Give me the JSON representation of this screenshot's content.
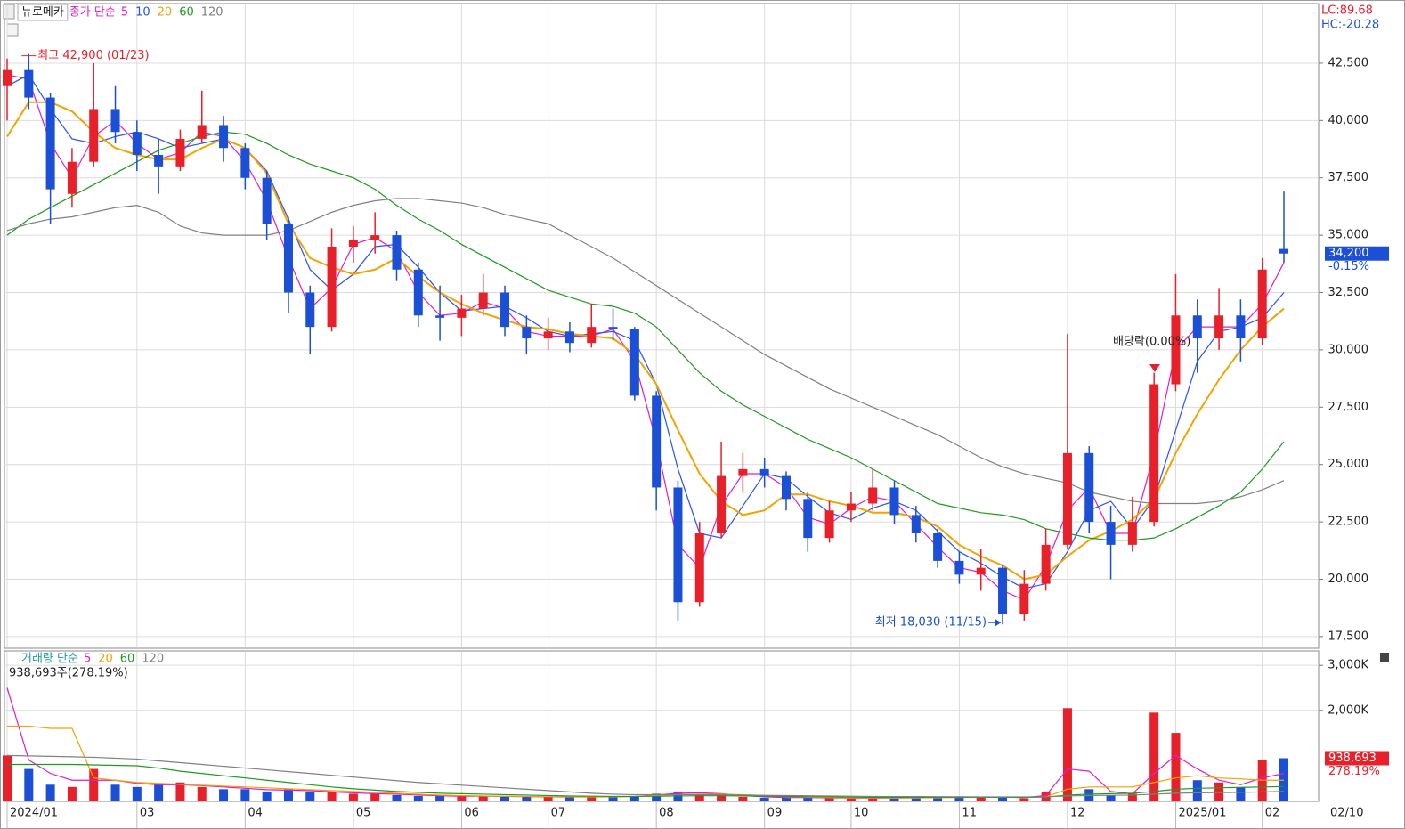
{
  "chart_data": [
    {
      "type": "candlestick",
      "title": "뉴로메카",
      "legend_prefix": "종가 단순",
      "open": [
        41500,
        42200,
        41000,
        36800,
        38200,
        40500,
        39500,
        38500,
        38000,
        39200,
        39800,
        38800,
        37500,
        35500,
        32500,
        31000,
        34500,
        34800,
        35000,
        33500,
        31500,
        31400,
        31800,
        32500,
        31000,
        30500,
        30800,
        30300,
        31000,
        30900,
        28000,
        24000,
        19000,
        22000,
        24500,
        24800,
        24500,
        23500,
        21800,
        23000,
        23300,
        24000,
        22800,
        22000,
        20800,
        20200,
        20500,
        18500,
        19800,
        21500,
        25500,
        22500,
        21500,
        22500,
        28500,
        31500,
        30500,
        31500,
        30500,
        34400
      ],
      "high": [
        42700,
        42900,
        41200,
        38800,
        42500,
        41500,
        40000,
        39200,
        39600,
        41300,
        40200,
        39000,
        37800,
        35800,
        32800,
        35300,
        35400,
        36000,
        35200,
        33800,
        32800,
        32400,
        33300,
        32800,
        31500,
        31400,
        31200,
        32000,
        31800,
        31000,
        28200,
        24300,
        22500,
        26000,
        25500,
        25300,
        24700,
        23800,
        23400,
        23800,
        24800,
        24300,
        23200,
        22200,
        21200,
        21300,
        20600,
        20400,
        22200,
        30700,
        25800,
        23200,
        23600,
        29000,
        33300,
        32200,
        32700,
        32200,
        34000,
        36900
      ],
      "low": [
        40000,
        40500,
        35500,
        36200,
        38000,
        39000,
        37800,
        36800,
        37800,
        39000,
        38200,
        37000,
        34800,
        31600,
        29800,
        30800,
        33800,
        34200,
        33000,
        31000,
        30400,
        30600,
        31500,
        30600,
        29800,
        30000,
        29900,
        30100,
        30400,
        27800,
        23000,
        18200,
        18800,
        21800,
        23800,
        24000,
        23000,
        21200,
        21600,
        22500,
        23000,
        22400,
        21600,
        20500,
        19800,
        19500,
        18030,
        18200,
        19500,
        21300,
        22000,
        20000,
        21200,
        22300,
        28200,
        29000,
        30000,
        29500,
        30200,
        33800
      ],
      "close": [
        42200,
        41000,
        37000,
        38200,
        40500,
        39500,
        38500,
        38000,
        39200,
        39800,
        38800,
        37500,
        35500,
        32500,
        31000,
        34500,
        34800,
        35000,
        33500,
        31500,
        31400,
        31800,
        32500,
        31000,
        30500,
        30800,
        30300,
        31000,
        30900,
        28000,
        24000,
        19000,
        22000,
        24500,
        24800,
        24500,
        23500,
        21800,
        23000,
        23300,
        24000,
        22800,
        22000,
        20800,
        20200,
        20500,
        18500,
        19800,
        21500,
        25500,
        22500,
        21500,
        22500,
        28500,
        31500,
        30500,
        31500,
        30500,
        33500,
        34200
      ],
      "series": [
        {
          "name": "5",
          "color": "#e01ccf",
          "values": [
            42000,
            41800,
            39000,
            37500,
            39300,
            40000,
            39000,
            38300,
            38600,
            39500,
            39300,
            38200,
            36500,
            34000,
            31800,
            32700,
            34600,
            34900,
            34300,
            32500,
            31500,
            31600,
            32100,
            31800,
            30800,
            30600,
            30600,
            30600,
            30900,
            29500,
            26000,
            21500,
            20500,
            23200,
            24600,
            24600,
            24000,
            22700,
            22400,
            23100,
            23600,
            23400,
            22400,
            21400,
            20500,
            20300,
            19500,
            19100,
            20600,
            23000,
            24000,
            22000,
            22000,
            25500,
            30000,
            31000,
            31000,
            31000,
            32000,
            33800
          ]
        },
        {
          "name": "10",
          "color": "#2a52f0",
          "values": [
            41500,
            42000,
            40500,
            39200,
            39000,
            39300,
            39500,
            39200,
            38800,
            39000,
            39200,
            38800,
            37800,
            35700,
            33500,
            32600,
            33300,
            34500,
            34600,
            33600,
            32500,
            31700,
            31800,
            31900,
            31400,
            30800,
            30600,
            30700,
            30800,
            30400,
            28500,
            24800,
            22000,
            21800,
            23200,
            24600,
            24400,
            23600,
            22900,
            22600,
            23100,
            23400,
            23000,
            22100,
            21200,
            20700,
            20100,
            19600,
            19800,
            21200,
            23000,
            23400,
            22200,
            23500,
            26500,
            29500,
            30800,
            31000,
            31400,
            32500
          ]
        },
        {
          "name": "20",
          "color": "#f0a400",
          "values": [
            39300,
            40800,
            40800,
            40400,
            39500,
            38800,
            38500,
            38300,
            38300,
            38800,
            39200,
            38800,
            37700,
            35500,
            34000,
            33600,
            33300,
            33500,
            34000,
            33200,
            32500,
            32000,
            31600,
            31300,
            31000,
            30900,
            30700,
            30600,
            30500,
            29800,
            28500,
            26500,
            24600,
            23400,
            22800,
            23000,
            23700,
            23700,
            23400,
            23200,
            22900,
            22900,
            22700,
            22300,
            21500,
            21000,
            20600,
            20000,
            20200,
            21000,
            21700,
            22100,
            22600,
            23500,
            25500,
            27200,
            28700,
            30000,
            31000,
            31800
          ]
        },
        {
          "name": "60",
          "color": "#1f9a1f",
          "values": [
            35000,
            35700,
            36200,
            36700,
            37200,
            37700,
            38200,
            38700,
            39000,
            39300,
            39500,
            39400,
            39000,
            38500,
            38100,
            37800,
            37500,
            37000,
            36300,
            35700,
            35200,
            34600,
            34100,
            33600,
            33100,
            32600,
            32300,
            32000,
            31900,
            31600,
            31000,
            30000,
            29000,
            28200,
            27600,
            27100,
            26600,
            26100,
            25700,
            25300,
            24800,
            24300,
            23800,
            23300,
            23100,
            22900,
            22800,
            22600,
            22200,
            22000,
            21800,
            21700,
            21700,
            21800,
            22200,
            22700,
            23200,
            23800,
            24800,
            26000
          ]
        },
        {
          "name": "120",
          "color": "#808080",
          "values": [
            35200,
            35500,
            35700,
            35800,
            36000,
            36200,
            36300,
            36000,
            35400,
            35100,
            35000,
            35000,
            35000,
            35200,
            35600,
            36000,
            36300,
            36500,
            36600,
            36600,
            36500,
            36400,
            36200,
            35900,
            35700,
            35500,
            35000,
            34500,
            34000,
            33400,
            32800,
            32200,
            31600,
            31000,
            30400,
            29800,
            29300,
            28800,
            28300,
            27900,
            27500,
            27100,
            26700,
            26300,
            25800,
            25300,
            24900,
            24600,
            24400,
            24200,
            23800,
            23600,
            23400,
            23300,
            23300,
            23300,
            23400,
            23600,
            23900,
            24300
          ]
        }
      ],
      "ylim": [
        17030,
        45060
      ],
      "yticks": [
        {
          "value": 17500,
          "label": "17,500"
        },
        {
          "value": 20000,
          "label": "20,000"
        },
        {
          "value": 22500,
          "label": "22,500"
        },
        {
          "value": 25000,
          "label": "25,000"
        },
        {
          "value": 27500,
          "label": "27,500"
        },
        {
          "value": 30000,
          "label": "30,000"
        },
        {
          "value": 32500,
          "label": "32,500"
        },
        {
          "value": 35000,
          "label": "35,000"
        },
        {
          "value": 37500,
          "label": "37,500"
        },
        {
          "value": 40000,
          "label": "40,000"
        },
        {
          "value": 42500,
          "label": "42,500"
        }
      ],
      "grid": true,
      "up_color": "#e8202a",
      "down_color": "#1a4fd6",
      "annotations": {
        "high": "최고 42,900 (01/23)",
        "low": "최저 18,030 (11/15)",
        "event": "배당락(0.00%)"
      },
      "indicators": [
        "LC:89.68",
        "HC:-20.28"
      ],
      "last_label": "34,200",
      "last_change": "-0.15%"
    },
    {
      "type": "bar",
      "legend_prefix": "거래량 단순",
      "categories": [
        "2024/01",
        null,
        null,
        null,
        null,
        null,
        "03",
        null,
        null,
        null,
        null,
        "04",
        null,
        null,
        null,
        null,
        "05",
        null,
        null,
        null,
        null,
        "06",
        null,
        null,
        null,
        "07",
        null,
        null,
        null,
        null,
        "08",
        null,
        null,
        null,
        null,
        "09",
        null,
        null,
        null,
        "10",
        null,
        null,
        null,
        null,
        "11",
        null,
        null,
        null,
        null,
        "12",
        null,
        null,
        null,
        null,
        "2025/01",
        null,
        null,
        null,
        "02",
        null
      ],
      "values": [
        1000000,
        700000,
        350000,
        300000,
        700000,
        350000,
        300000,
        350000,
        400000,
        300000,
        250000,
        250000,
        200000,
        250000,
        200000,
        180000,
        150000,
        150000,
        120000,
        100000,
        100000,
        90000,
        100000,
        80000,
        80000,
        80000,
        70000,
        80000,
        90000,
        100000,
        150000,
        200000,
        150000,
        120000,
        80000,
        60000,
        60000,
        80000,
        50000,
        50000,
        60000,
        50000,
        60000,
        80000,
        90000,
        60000,
        80000,
        50000,
        200000,
        2050000,
        250000,
        120000,
        150000,
        1950000,
        1500000,
        450000,
        400000,
        300000,
        900000,
        938693
      ],
      "series": [
        {
          "name": "5",
          "color": "#e01ccf",
          "values": [
            2500000,
            900000,
            600000,
            450000,
            450000,
            450000,
            380000,
            350000,
            350000,
            330000,
            300000,
            270000,
            240000,
            230000,
            220000,
            190000,
            170000,
            150000,
            140000,
            120000,
            105000,
            95000,
            95000,
            90000,
            85000,
            80000,
            78000,
            78000,
            82000,
            90000,
            120000,
            160000,
            170000,
            150000,
            110000,
            80000,
            65000,
            65000,
            60000,
            55000,
            55000,
            55000,
            58000,
            70000,
            80000,
            75000,
            75000,
            65000,
            110000,
            700000,
            650000,
            200000,
            150000,
            600000,
            1000000,
            700000,
            450000,
            350000,
            500000,
            600000
          ]
        },
        {
          "name": "20",
          "color": "#f0a400",
          "values": [
            1650000,
            1650000,
            1600000,
            1600000,
            500000,
            450000,
            400000,
            380000,
            360000,
            340000,
            320000,
            300000,
            280000,
            260000,
            240000,
            220000,
            200000,
            180000,
            160000,
            140000,
            120000,
            110000,
            100000,
            95000,
            90000,
            85000,
            82000,
            80000,
            82000,
            90000,
            110000,
            130000,
            140000,
            140000,
            130000,
            110000,
            90000,
            75000,
            65000,
            60000,
            58000,
            56000,
            58000,
            62000,
            68000,
            70000,
            70000,
            68000,
            80000,
            250000,
            300000,
            300000,
            300000,
            400000,
            500000,
            550000,
            500000,
            480000,
            450000,
            450000
          ]
        },
        {
          "name": "60",
          "color": "#1f9a1f",
          "values": [
            800000,
            800000,
            800000,
            800000,
            790000,
            780000,
            770000,
            720000,
            650000,
            600000,
            550000,
            500000,
            450000,
            400000,
            350000,
            300000,
            260000,
            230000,
            200000,
            180000,
            160000,
            150000,
            140000,
            130000,
            120000,
            110000,
            100000,
            95000,
            90000,
            90000,
            95000,
            100000,
            105000,
            105000,
            100000,
            95000,
            90000,
            85000,
            80000,
            75000,
            72000,
            70000,
            70000,
            70000,
            70000,
            70000,
            70000,
            70000,
            75000,
            120000,
            140000,
            150000,
            160000,
            200000,
            250000,
            270000,
            280000,
            290000,
            300000,
            310000
          ]
        },
        {
          "name": "120",
          "color": "#808080",
          "values": [
            1000000,
            990000,
            980000,
            970000,
            960000,
            940000,
            920000,
            880000,
            840000,
            800000,
            760000,
            720000,
            680000,
            640000,
            600000,
            560000,
            520000,
            480000,
            440000,
            400000,
            370000,
            340000,
            310000,
            280000,
            250000,
            220000,
            190000,
            160000,
            140000,
            130000,
            130000,
            130000,
            130000,
            125000,
            120000,
            115000,
            110000,
            105000,
            100000,
            95000,
            90000,
            88000,
            86000,
            84000,
            82000,
            80000,
            80000,
            80000,
            82000,
            100000,
            110000,
            115000,
            120000,
            140000,
            160000,
            170000,
            175000,
            180000,
            190000,
            200000
          ]
        }
      ],
      "ylim": [
        0,
        3300000
      ],
      "yticks": [
        {
          "value": 2000000,
          "label": "2,000K"
        },
        {
          "value": 3000000,
          "label": "3,000K"
        }
      ],
      "grid": true,
      "info": "938,693주(278.19%)",
      "last_label": "938,693",
      "last_change": "278.19%",
      "end_date": "02/10"
    }
  ]
}
